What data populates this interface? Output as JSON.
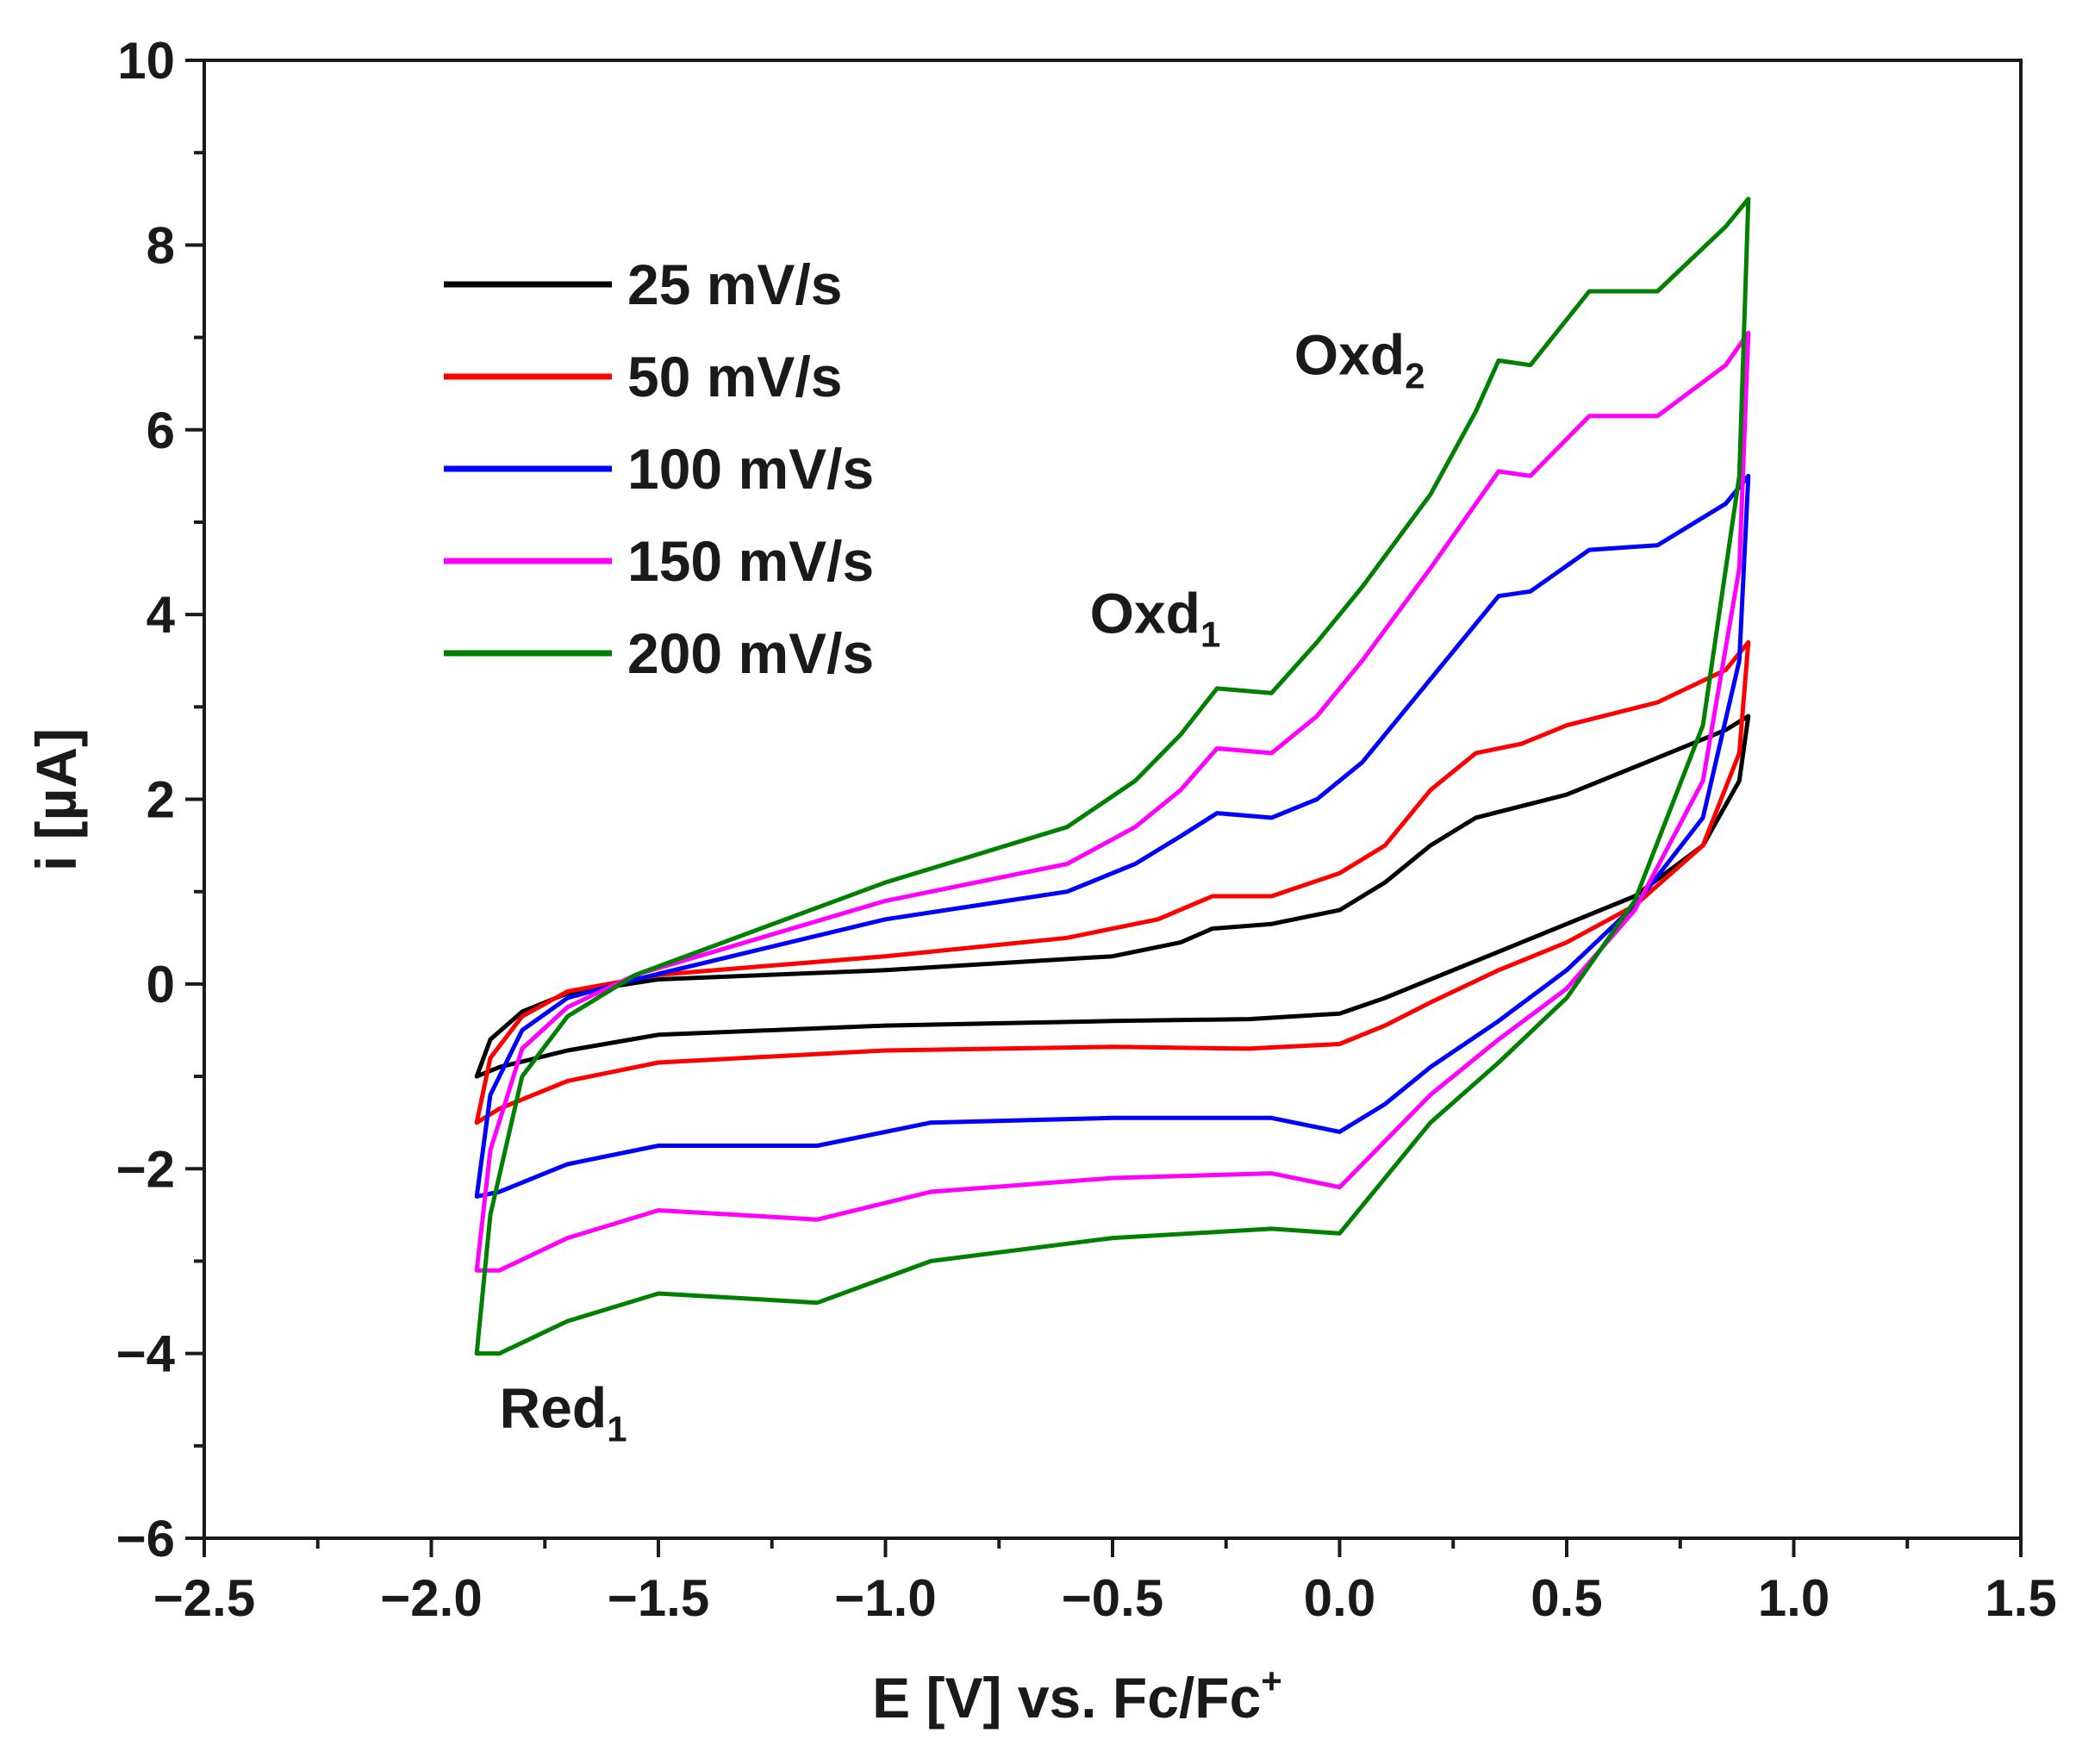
{
  "chart_data": {
    "type": "line",
    "title": "",
    "xlabel": "E [V] vs. Fc/Fc",
    "xlabel_superscript": "+",
    "ylabel": "i [µA]",
    "xlim": [
      -2.5,
      1.5
    ],
    "ylim": [
      -6,
      10
    ],
    "grid": false,
    "legend_position": "top-left",
    "x_ticks": [
      "−2.5",
      "−2.0",
      "−1.5",
      "−1.0",
      "−0.5",
      "0.0",
      "0.5",
      "1.0",
      "1.5"
    ],
    "y_ticks": [
      "−6",
      "−4",
      "−2",
      "0",
      "2",
      "4",
      "6",
      "8",
      "10"
    ],
    "annotations": [
      {
        "text": "Oxd",
        "subscript": "1",
        "x": -0.55,
        "y": 3.8
      },
      {
        "text": "Oxd",
        "subscript": "2",
        "x": -0.1,
        "y": 6.6
      },
      {
        "text": "Red",
        "subscript": "1",
        "x": -1.85,
        "y": -4.8
      }
    ],
    "series": [
      {
        "name": "25 mV/s",
        "color": "#000000",
        "forward": [
          [
            -1.9,
            -1.0
          ],
          [
            -1.87,
            -0.6
          ],
          [
            -1.8,
            -0.3
          ],
          [
            -1.7,
            -0.1
          ],
          [
            -1.5,
            0.05
          ],
          [
            -1.0,
            0.15
          ],
          [
            -0.5,
            0.3
          ],
          [
            -0.35,
            0.45
          ],
          [
            -0.28,
            0.6
          ],
          [
            -0.15,
            0.65
          ],
          [
            0.0,
            0.8
          ],
          [
            0.1,
            1.1
          ],
          [
            0.2,
            1.5
          ],
          [
            0.3,
            1.8
          ],
          [
            0.5,
            2.05
          ],
          [
            0.7,
            2.45
          ],
          [
            0.85,
            2.75
          ],
          [
            0.9,
            2.9
          ]
        ],
        "reverse": [
          [
            0.9,
            2.9
          ],
          [
            0.88,
            2.2
          ],
          [
            0.8,
            1.5
          ],
          [
            0.65,
            0.95
          ],
          [
            0.5,
            0.65
          ],
          [
            0.35,
            0.35
          ],
          [
            0.2,
            0.05
          ],
          [
            0.1,
            -0.15
          ],
          [
            0.0,
            -0.32
          ],
          [
            -0.2,
            -0.38
          ],
          [
            -0.5,
            -0.4
          ],
          [
            -1.0,
            -0.45
          ],
          [
            -1.5,
            -0.55
          ],
          [
            -1.7,
            -0.72
          ],
          [
            -1.85,
            -0.9
          ],
          [
            -1.9,
            -1.0
          ]
        ]
      },
      {
        "name": "50 mV/s",
        "color": "#ff0000",
        "forward": [
          [
            -1.9,
            -1.5
          ],
          [
            -1.87,
            -0.8
          ],
          [
            -1.8,
            -0.35
          ],
          [
            -1.7,
            -0.08
          ],
          [
            -1.5,
            0.1
          ],
          [
            -1.0,
            0.3
          ],
          [
            -0.6,
            0.5
          ],
          [
            -0.4,
            0.7
          ],
          [
            -0.28,
            0.95
          ],
          [
            -0.15,
            0.95
          ],
          [
            0.0,
            1.2
          ],
          [
            0.1,
            1.5
          ],
          [
            0.2,
            2.1
          ],
          [
            0.3,
            2.5
          ],
          [
            0.4,
            2.6
          ],
          [
            0.5,
            2.8
          ],
          [
            0.7,
            3.05
          ],
          [
            0.85,
            3.4
          ],
          [
            0.9,
            3.7
          ]
        ],
        "reverse": [
          [
            0.9,
            3.7
          ],
          [
            0.88,
            2.5
          ],
          [
            0.8,
            1.5
          ],
          [
            0.65,
            0.85
          ],
          [
            0.5,
            0.45
          ],
          [
            0.35,
            0.15
          ],
          [
            0.2,
            -0.2
          ],
          [
            0.1,
            -0.45
          ],
          [
            0.0,
            -0.65
          ],
          [
            -0.2,
            -0.7
          ],
          [
            -0.5,
            -0.68
          ],
          [
            -1.0,
            -0.72
          ],
          [
            -1.5,
            -0.85
          ],
          [
            -1.7,
            -1.05
          ],
          [
            -1.85,
            -1.35
          ],
          [
            -1.9,
            -1.5
          ]
        ]
      },
      {
        "name": "100 mV/s",
        "color": "#0000ff",
        "forward": [
          [
            -1.9,
            -2.3
          ],
          [
            -1.87,
            -1.2
          ],
          [
            -1.8,
            -0.5
          ],
          [
            -1.7,
            -0.15
          ],
          [
            -1.55,
            0.05
          ],
          [
            -1.0,
            0.7
          ],
          [
            -0.6,
            1.0
          ],
          [
            -0.45,
            1.3
          ],
          [
            -0.35,
            1.6
          ],
          [
            -0.27,
            1.85
          ],
          [
            -0.15,
            1.8
          ],
          [
            -0.05,
            2.0
          ],
          [
            0.05,
            2.4
          ],
          [
            0.2,
            3.3
          ],
          [
            0.3,
            3.9
          ],
          [
            0.35,
            4.2
          ],
          [
            0.42,
            4.25
          ],
          [
            0.55,
            4.7
          ],
          [
            0.7,
            4.75
          ],
          [
            0.85,
            5.2
          ],
          [
            0.9,
            5.5
          ]
        ],
        "reverse": [
          [
            0.9,
            5.5
          ],
          [
            0.88,
            3.5
          ],
          [
            0.8,
            1.8
          ],
          [
            0.65,
            0.85
          ],
          [
            0.5,
            0.15
          ],
          [
            0.35,
            -0.4
          ],
          [
            0.2,
            -0.9
          ],
          [
            0.1,
            -1.3
          ],
          [
            0.0,
            -1.6
          ],
          [
            -0.15,
            -1.45
          ],
          [
            -0.5,
            -1.45
          ],
          [
            -0.9,
            -1.5
          ],
          [
            -1.15,
            -1.75
          ],
          [
            -1.5,
            -1.75
          ],
          [
            -1.7,
            -1.95
          ],
          [
            -1.85,
            -2.25
          ],
          [
            -1.9,
            -2.3
          ]
        ]
      },
      {
        "name": "150 mV/s",
        "color": "#ff00ff",
        "forward": [
          [
            -1.9,
            -3.1
          ],
          [
            -1.87,
            -1.8
          ],
          [
            -1.8,
            -0.7
          ],
          [
            -1.7,
            -0.25
          ],
          [
            -1.55,
            0.1
          ],
          [
            -1.0,
            0.9
          ],
          [
            -0.6,
            1.3
          ],
          [
            -0.45,
            1.7
          ],
          [
            -0.35,
            2.1
          ],
          [
            -0.27,
            2.55
          ],
          [
            -0.15,
            2.5
          ],
          [
            -0.05,
            2.9
          ],
          [
            0.05,
            3.5
          ],
          [
            0.2,
            4.5
          ],
          [
            0.3,
            5.2
          ],
          [
            0.35,
            5.55
          ],
          [
            0.42,
            5.5
          ],
          [
            0.55,
            6.15
          ],
          [
            0.7,
            6.15
          ],
          [
            0.85,
            6.7
          ],
          [
            0.9,
            7.05
          ]
        ],
        "reverse": [
          [
            0.9,
            7.05
          ],
          [
            0.88,
            4.5
          ],
          [
            0.8,
            2.2
          ],
          [
            0.65,
            0.8
          ],
          [
            0.5,
            -0.05
          ],
          [
            0.35,
            -0.6
          ],
          [
            0.2,
            -1.2
          ],
          [
            0.1,
            -1.7
          ],
          [
            0.0,
            -2.2
          ],
          [
            -0.15,
            -2.05
          ],
          [
            -0.5,
            -2.1
          ],
          [
            -0.9,
            -2.25
          ],
          [
            -1.15,
            -2.55
          ],
          [
            -1.5,
            -2.45
          ],
          [
            -1.7,
            -2.75
          ],
          [
            -1.85,
            -3.1
          ],
          [
            -1.9,
            -3.1
          ]
        ]
      },
      {
        "name": "200 mV/s",
        "color": "#008000",
        "forward": [
          [
            -1.9,
            -4.0
          ],
          [
            -1.87,
            -2.5
          ],
          [
            -1.8,
            -1.0
          ],
          [
            -1.7,
            -0.35
          ],
          [
            -1.55,
            0.1
          ],
          [
            -1.0,
            1.1
          ],
          [
            -0.6,
            1.7
          ],
          [
            -0.45,
            2.2
          ],
          [
            -0.35,
            2.7
          ],
          [
            -0.27,
            3.2
          ],
          [
            -0.15,
            3.15
          ],
          [
            -0.05,
            3.7
          ],
          [
            0.05,
            4.3
          ],
          [
            0.2,
            5.3
          ],
          [
            0.3,
            6.2
          ],
          [
            0.35,
            6.75
          ],
          [
            0.42,
            6.7
          ],
          [
            0.55,
            7.5
          ],
          [
            0.7,
            7.5
          ],
          [
            0.85,
            8.2
          ],
          [
            0.9,
            8.5
          ]
        ],
        "reverse": [
          [
            0.9,
            8.5
          ],
          [
            0.88,
            5.5
          ],
          [
            0.8,
            2.8
          ],
          [
            0.65,
            0.9
          ],
          [
            0.5,
            -0.15
          ],
          [
            0.35,
            -0.85
          ],
          [
            0.2,
            -1.5
          ],
          [
            0.1,
            -2.1
          ],
          [
            0.0,
            -2.7
          ],
          [
            -0.15,
            -2.65
          ],
          [
            -0.5,
            -2.75
          ],
          [
            -0.9,
            -3.0
          ],
          [
            -1.15,
            -3.45
          ],
          [
            -1.5,
            -3.35
          ],
          [
            -1.7,
            -3.65
          ],
          [
            -1.85,
            -4.0
          ],
          [
            -1.9,
            -4.0
          ]
        ]
      }
    ]
  }
}
